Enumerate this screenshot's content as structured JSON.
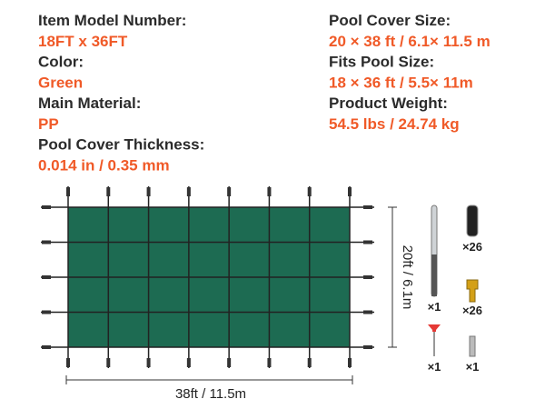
{
  "specs": {
    "left": [
      {
        "label": "Item Model Number:",
        "value": "18FT x 36FT"
      },
      {
        "label": "Color:",
        "value": "Green"
      },
      {
        "label": "Main Material:",
        "value": "PP"
      },
      {
        "label": "Pool Cover Thickness:",
        "value": "0.014 in / 0.35 mm"
      }
    ],
    "right": [
      {
        "label": "Pool Cover Size:",
        "value": "20 × 38 ft / 6.1× 11.5 m"
      },
      {
        "label": "Fits Pool Size:",
        "value": "18 × 36 ft / 5.5× 11m"
      },
      {
        "label": "Product Weight:",
        "value": "54.5 lbs / 24.74 kg"
      }
    ]
  },
  "dimensions": {
    "height": "20ft / 6.1m",
    "width": "38ft / 11.5m"
  },
  "accessories": [
    "×1",
    "×26",
    "×26",
    "×1",
    "×1"
  ]
}
